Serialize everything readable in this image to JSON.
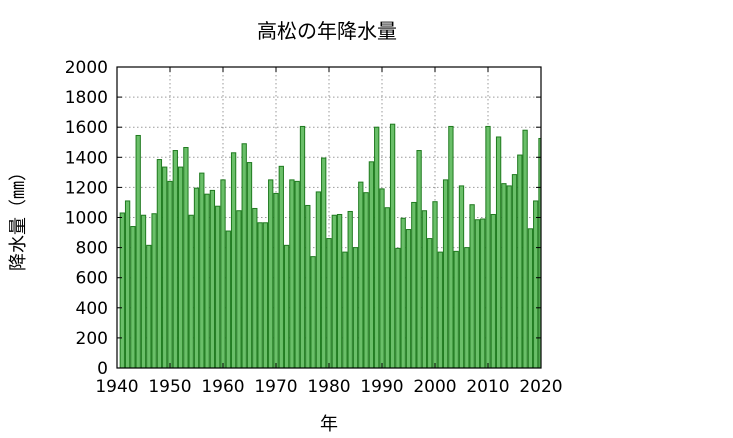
{
  "chart_data": {
    "type": "bar",
    "title": "高松の年降水量",
    "xlabel": "年",
    "ylabel": "降水量（㎜）",
    "xlim": [
      1940,
      2020
    ],
    "ylim": [
      0,
      2000
    ],
    "xticks": [
      1940,
      1950,
      1960,
      1970,
      1980,
      1990,
      2000,
      2010,
      2020
    ],
    "yticks": [
      0,
      200,
      400,
      600,
      800,
      1000,
      1200,
      1400,
      1600,
      1800,
      2000
    ],
    "grid": true,
    "bar_color": "#6abf69",
    "bar_edge_color": "#1f7a1f",
    "x": [
      1941,
      1942,
      1943,
      1944,
      1945,
      1946,
      1947,
      1948,
      1949,
      1950,
      1951,
      1952,
      1953,
      1954,
      1955,
      1956,
      1957,
      1958,
      1959,
      1960,
      1961,
      1962,
      1963,
      1964,
      1965,
      1966,
      1967,
      1968,
      1969,
      1970,
      1971,
      1972,
      1973,
      1974,
      1975,
      1976,
      1977,
      1978,
      1979,
      1980,
      1981,
      1982,
      1983,
      1984,
      1985,
      1986,
      1987,
      1988,
      1989,
      1990,
      1991,
      1992,
      1993,
      1994,
      1995,
      1996,
      1997,
      1998,
      1999,
      2000,
      2001,
      2002,
      2003,
      2004,
      2005,
      2006,
      2007,
      2008,
      2009,
      2010,
      2011,
      2012,
      2013,
      2014,
      2015,
      2016,
      2017,
      2018,
      2019,
      2020
    ],
    "values": [
      1030,
      1110,
      940,
      1545,
      1015,
      815,
      1025,
      1385,
      1335,
      1240,
      1445,
      1335,
      1465,
      1015,
      1195,
      1295,
      1155,
      1180,
      1075,
      1250,
      910,
      1430,
      1045,
      1490,
      1365,
      1060,
      965,
      965,
      1250,
      1160,
      1340,
      815,
      1250,
      1240,
      1605,
      1080,
      740,
      1170,
      1395,
      860,
      1015,
      1020,
      770,
      1040,
      800,
      1235,
      1165,
      1370,
      1600,
      1190,
      1065,
      1620,
      795,
      995,
      920,
      1100,
      1445,
      1045,
      860,
      1105,
      770,
      1250,
      1605,
      775,
      1210,
      800,
      1085,
      985,
      990,
      1605,
      1020,
      1535,
      1225,
      1210,
      1285,
      1415,
      1580,
      925,
      1110,
      1525
    ]
  }
}
